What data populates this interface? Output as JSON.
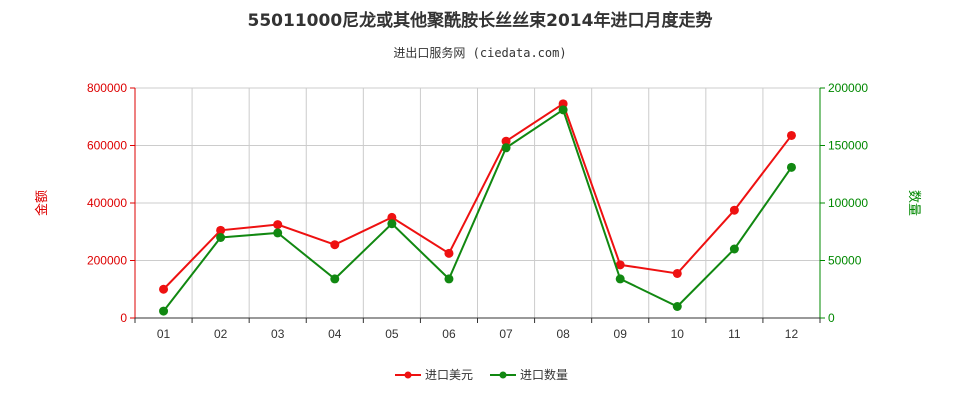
{
  "chart_data": {
    "type": "line",
    "title": "55011000尼龙或其他聚酰胺长丝丝束2014年进口月度走势",
    "subtitle": "进出口服务网 (ciedata.com)",
    "categories": [
      "01",
      "02",
      "03",
      "04",
      "05",
      "06",
      "07",
      "08",
      "09",
      "10",
      "11",
      "12"
    ],
    "y_left": {
      "label": "金额",
      "range": [
        0,
        800000
      ],
      "ticks": [
        "0",
        "200000",
        "400000",
        "600000",
        "800000"
      ],
      "color": "#dd0000"
    },
    "y_right": {
      "label": "数量",
      "range": [
        0,
        200000
      ],
      "ticks": [
        "0",
        "50000",
        "100000",
        "150000",
        "200000"
      ],
      "color": "#008800"
    },
    "series": [
      {
        "name": "进口美元",
        "axis": "left",
        "color": "#ee1111",
        "values": [
          100000,
          305000,
          325000,
          255000,
          350000,
          225000,
          615000,
          745000,
          185000,
          155000,
          375000,
          635000
        ]
      },
      {
        "name": "进口数量",
        "axis": "right",
        "color": "#118811",
        "values": [
          6000,
          70000,
          74000,
          34000,
          82000,
          34000,
          148000,
          181000,
          34000,
          10000,
          60000,
          131000
        ]
      }
    ],
    "grid": true,
    "legend_position": "bottom-center"
  }
}
